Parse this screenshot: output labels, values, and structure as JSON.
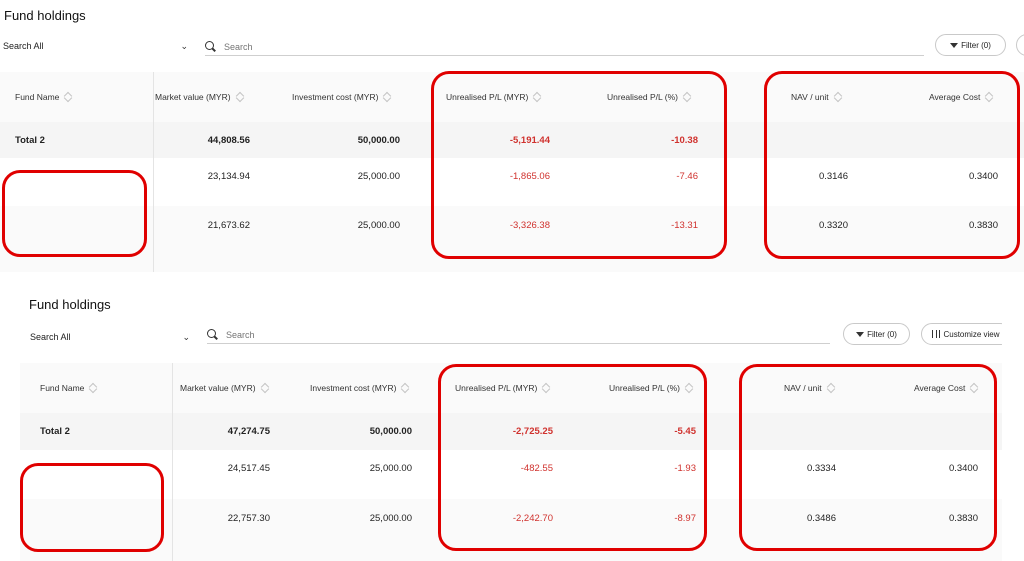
{
  "colors": {
    "negative": "#d0322e",
    "annotation": "#e00000"
  },
  "panels": [
    {
      "title": "Fund holdings",
      "search": {
        "scope": "Search All",
        "placeholder": "Search"
      },
      "filter_label": "Filter (0)",
      "customize_label": "",
      "columns": [
        "Fund Name",
        "Market value (MYR)",
        "Investment cost (MYR)",
        "Unrealised P/L (MYR)",
        "Unrealised P/L (%)",
        "NAV / unit",
        "Average Cost"
      ],
      "total": {
        "name": "Total 2",
        "market_value": "44,808.56",
        "investment_cost": "50,000.00",
        "pl_myr": "-5,191.44",
        "pl_pct": "-10.38"
      },
      "rows": [
        {
          "market_value": "23,134.94",
          "investment_cost": "25,000.00",
          "pl_myr": "-1,865.06",
          "pl_pct": "-7.46",
          "nav": "0.3146",
          "avg_cost": "0.3400"
        },
        {
          "market_value": "21,673.62",
          "investment_cost": "25,000.00",
          "pl_myr": "-3,326.38",
          "pl_pct": "-13.31",
          "nav": "0.3320",
          "avg_cost": "0.3830"
        }
      ]
    },
    {
      "title": "Fund holdings",
      "search": {
        "scope": "Search All",
        "placeholder": "Search"
      },
      "filter_label": "Filter (0)",
      "customize_label": "Customize view",
      "columns": [
        "Fund Name",
        "Market value (MYR)",
        "Investment cost (MYR)",
        "Unrealised P/L (MYR)",
        "Unrealised P/L (%)",
        "NAV / unit",
        "Average Cost"
      ],
      "total": {
        "name": "Total 2",
        "market_value": "47,274.75",
        "investment_cost": "50,000.00",
        "pl_myr": "-2,725.25",
        "pl_pct": "-5.45"
      },
      "rows": [
        {
          "market_value": "24,517.45",
          "investment_cost": "25,000.00",
          "pl_myr": "-482.55",
          "pl_pct": "-1.93",
          "nav": "0.3334",
          "avg_cost": "0.3400"
        },
        {
          "market_value": "22,757.30",
          "investment_cost": "25,000.00",
          "pl_myr": "-2,242.70",
          "pl_pct": "-8.97",
          "nav": "0.3486",
          "avg_cost": "0.3830"
        }
      ]
    }
  ]
}
